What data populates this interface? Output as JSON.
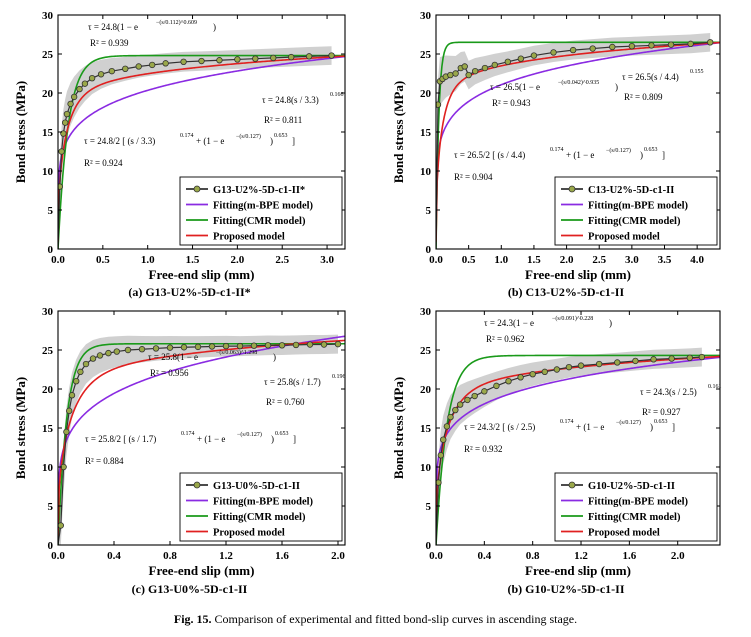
{
  "figure": {
    "caption_label": "Fig. 15.",
    "caption_text": "Comparison of experimental and fitted bond-slip curves in ascending stage."
  },
  "colors": {
    "experimental": "#6b7a2a",
    "marker_fill": "#9aa84a",
    "mbpe": "#8a2be2",
    "cmr": "#1a9a1a",
    "proposed": "#e02020",
    "band": "#c8c8c8"
  },
  "chart_data": [
    {
      "type": "line",
      "id": "a",
      "subtitle": "(a) G13-U2%-5D-c1-II*",
      "xlabel": "Free-end slip (mm)",
      "ylabel": "Bond stress (MPa)",
      "xlim": [
        0,
        3.2
      ],
      "ylim": [
        0,
        30
      ],
      "xticks": [
        0,
        0.5,
        1.0,
        1.5,
        2.0,
        2.5,
        3.0
      ],
      "xtick_labels": [
        "0.0",
        "0.5",
        "1.0",
        "1.5",
        "2.0",
        "2.5",
        "3.0"
      ],
      "yticks": [
        0,
        5,
        10,
        15,
        20,
        25,
        30
      ],
      "legend": [
        "G13-U2%-5D-c1-II*",
        "Fitting(m-BPE model)",
        "Fitting(CMR model)",
        "Proposed model"
      ],
      "params": {
        "tau": 24.8,
        "s0": 3.3,
        "a": 0.166,
        "c": 0.112,
        "b": 0.609,
        "d": 0.127,
        "e": 0.653
      },
      "experimental": {
        "x": [
          0,
          0.02,
          0.04,
          0.06,
          0.08,
          0.1,
          0.14,
          0.18,
          0.24,
          0.3,
          0.38,
          0.48,
          0.6,
          0.75,
          0.9,
          1.05,
          1.2,
          1.4,
          1.6,
          1.8,
          2.0,
          2.2,
          2.4,
          2.6,
          2.8,
          3.05
        ],
        "y": [
          0,
          8,
          12.5,
          14.8,
          16.2,
          17.3,
          18.6,
          19.5,
          20.5,
          21.2,
          21.9,
          22.4,
          22.8,
          23.1,
          23.4,
          23.6,
          23.8,
          24.0,
          24.1,
          24.2,
          24.3,
          24.4,
          24.5,
          24.6,
          24.7,
          24.8
        ]
      },
      "annotations": [
        {
          "type": "eq1",
          "coef": "24.8",
          "c": "0.112",
          "b": "0.609",
          "r2": "0.939"
        },
        {
          "type": "eq2",
          "coef": "24.8",
          "s0": "3.3",
          "a": "0.166",
          "r2": "0.811"
        },
        {
          "type": "eq3",
          "coef": "24.8",
          "s0": "3.3",
          "a": "0.174",
          "d": "0.127",
          "e": "0.653",
          "r2": "0.924"
        }
      ]
    },
    {
      "type": "line",
      "id": "b",
      "subtitle": "(b) C13-U2%-5D-c1-II",
      "xlabel": "Free-end slip (mm)",
      "ylabel": "Bond stress (MPa)",
      "xlim": [
        0,
        4.35
      ],
      "ylim": [
        0,
        30
      ],
      "xticks": [
        0,
        0.5,
        1.0,
        1.5,
        2.0,
        2.5,
        3.0,
        3.5,
        4.0
      ],
      "xtick_labels": [
        "0.0",
        "0.5",
        "1.0",
        "1.5",
        "2.0",
        "2.5",
        "3.0",
        "3.5",
        "4.0"
      ],
      "yticks": [
        0,
        5,
        10,
        15,
        20,
        25,
        30
      ],
      "legend": [
        "C13-U2%-5D-c1-II",
        "Fitting(m-BPE model)",
        "Fitting(CMR model)",
        "Proposed model"
      ],
      "params": {
        "tau": 26.5,
        "s0": 4.4,
        "a": 0.155,
        "c": 0.042,
        "b": 0.935,
        "d": 0.127,
        "e": 0.653
      },
      "experimental": {
        "x": [
          0,
          0.03,
          0.06,
          0.1,
          0.15,
          0.22,
          0.3,
          0.38,
          0.44,
          0.5,
          0.6,
          0.75,
          0.9,
          1.1,
          1.3,
          1.5,
          1.8,
          2.1,
          2.4,
          2.7,
          3.0,
          3.3,
          3.6,
          3.9,
          4.2
        ],
        "y": [
          0,
          18.5,
          21.5,
          21.8,
          22.1,
          22.3,
          22.5,
          23.2,
          23.4,
          22.3,
          22.8,
          23.2,
          23.6,
          24.0,
          24.4,
          24.8,
          25.2,
          25.5,
          25.7,
          25.9,
          26.0,
          26.1,
          26.2,
          26.3,
          26.5
        ]
      },
      "annotations": [
        {
          "type": "eq1",
          "coef": "26.5",
          "c": "0.042",
          "b": "0.935",
          "r2": "0.943"
        },
        {
          "type": "eq2",
          "coef": "26.5",
          "s0": "4.4",
          "a": "0.155",
          "r2": "0.809"
        },
        {
          "type": "eq3",
          "coef": "26.5",
          "s0": "4.4",
          "a": "0.174",
          "d": "0.127",
          "e": "0.653",
          "r2": "0.904"
        }
      ]
    },
    {
      "type": "line",
      "id": "c",
      "subtitle": "(c) G13-U0%-5D-c1-II",
      "xlabel": "Free-end slip (mm)",
      "ylabel": "Bond stress (MPa)",
      "xlim": [
        0,
        2.05
      ],
      "ylim": [
        0,
        30
      ],
      "xticks": [
        0,
        0.4,
        0.8,
        1.2,
        1.6,
        2.0
      ],
      "xtick_labels": [
        "0.0",
        "0.4",
        "0.8",
        "1.2",
        "1.6",
        "2.0"
      ],
      "yticks": [
        0,
        5,
        10,
        15,
        20,
        25,
        30
      ],
      "legend": [
        "G13-U0%-5D-c1-II",
        "Fitting(m-BPE model)",
        "Fitting(CMR model)",
        "Proposed model"
      ],
      "params": {
        "tau": 25.8,
        "s0": 1.7,
        "a": 0.196,
        "c": 0.063,
        "b": 1.298,
        "d": 0.127,
        "e": 0.653
      },
      "experimental": {
        "x": [
          0,
          0.02,
          0.04,
          0.06,
          0.08,
          0.1,
          0.13,
          0.16,
          0.2,
          0.25,
          0.3,
          0.36,
          0.42,
          0.5,
          0.6,
          0.7,
          0.8,
          0.9,
          1.0,
          1.1,
          1.2,
          1.3,
          1.4,
          1.5,
          1.6,
          1.7,
          1.8,
          1.9,
          2.0
        ],
        "y": [
          0,
          2.5,
          10,
          14.5,
          17.2,
          19.2,
          21.0,
          22.2,
          23.2,
          23.9,
          24.3,
          24.6,
          24.8,
          25.0,
          25.1,
          25.2,
          25.3,
          25.35,
          25.4,
          25.45,
          25.5,
          25.5,
          25.55,
          25.6,
          25.6,
          25.65,
          25.7,
          25.7,
          25.75
        ]
      },
      "annotations": [
        {
          "type": "eq1",
          "coef": "25.8",
          "c": "0.063",
          "b": "1.298",
          "r2": "0.956"
        },
        {
          "type": "eq2",
          "coef": "25.8",
          "s0": "1.7",
          "a": "0.196",
          "r2": "0.760"
        },
        {
          "type": "eq3",
          "coef": "25.8",
          "s0": "1.7",
          "a": "0.174",
          "d": "0.127",
          "e": "0.653",
          "r2": "0.884"
        }
      ]
    },
    {
      "type": "line",
      "id": "d",
      "subtitle": "(b) G10-U2%-5D-c1-II",
      "xlabel": "Free-end slip (mm)",
      "ylabel": "Bond stress (MPa)",
      "xlim": [
        0,
        2.35
      ],
      "ylim": [
        0,
        30
      ],
      "xticks": [
        0,
        0.4,
        0.8,
        1.2,
        1.6,
        2.0
      ],
      "xtick_labels": [
        "0.0",
        "0.4",
        "0.8",
        "1.2",
        "1.6",
        "2.0"
      ],
      "yticks": [
        0,
        5,
        10,
        15,
        20,
        25,
        30
      ],
      "legend": [
        "G10-U2%-5D-c1-II",
        "Fitting(m-BPE model)",
        "Fitting(CMR model)",
        "Proposed model"
      ],
      "params": {
        "tau": 24.3,
        "s0": 2.5,
        "a": 0.161,
        "c": 0.091,
        "b": 0.228,
        "d": 0.127,
        "e": 0.653
      },
      "experimental": {
        "x": [
          0,
          0.02,
          0.04,
          0.06,
          0.09,
          0.12,
          0.16,
          0.2,
          0.26,
          0.32,
          0.4,
          0.5,
          0.6,
          0.7,
          0.8,
          0.9,
          1.0,
          1.1,
          1.2,
          1.35,
          1.5,
          1.65,
          1.8,
          1.95,
          2.1,
          2.2
        ],
        "y": [
          0,
          8,
          11.5,
          13.5,
          15.2,
          16.4,
          17.3,
          18.0,
          18.6,
          19.1,
          19.7,
          20.4,
          21.0,
          21.5,
          21.9,
          22.2,
          22.5,
          22.8,
          23.0,
          23.2,
          23.4,
          23.6,
          23.8,
          23.9,
          24.0,
          24.1
        ]
      },
      "annotations": [
        {
          "type": "eq1",
          "coef": "24.3",
          "c": "0.091",
          "b": "0.228",
          "r2": "0.962"
        },
        {
          "type": "eq2",
          "coef": "24.3",
          "s0": "2.5",
          "a": "0.161",
          "r2": "0.927"
        },
        {
          "type": "eq3",
          "coef": "24.3",
          "s0": "2.5",
          "a": "0.174",
          "d": "0.127",
          "e": "0.653",
          "r2": "0.932"
        }
      ]
    }
  ]
}
